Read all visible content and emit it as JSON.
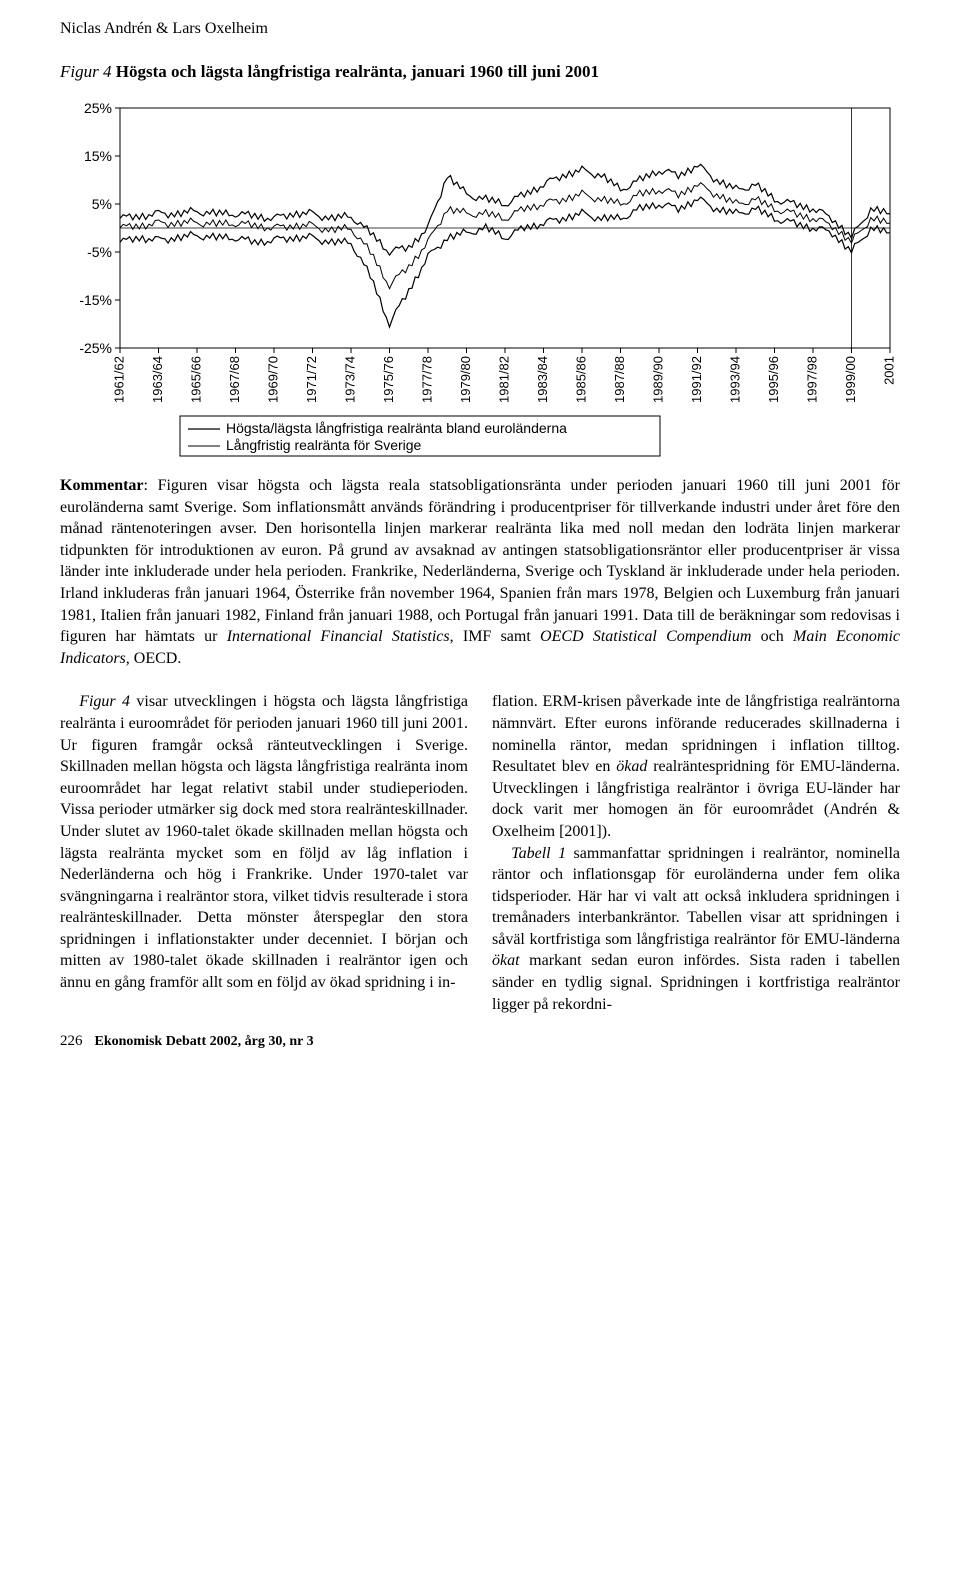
{
  "authors": "Niclas Andrén & Lars Oxelheim",
  "figure": {
    "label": "Figur 4",
    "title": "Högsta och lägsta långfristiga realränta, januari 1960 till juni 2001"
  },
  "chart": {
    "type": "line",
    "background_color": "#ffffff",
    "axis_color": "#000000",
    "grid_color": "#000000",
    "ylim": [
      -25,
      25
    ],
    "ytick_step": 10,
    "yticks": [
      "25%",
      "15%",
      "5%",
      "-5%",
      "-15%",
      "-25%"
    ],
    "ytick_values": [
      25,
      15,
      5,
      -5,
      -15,
      -25
    ],
    "xticks": [
      "1961/62",
      "1963/64",
      "1965/66",
      "1967/68",
      "1969/70",
      "1971/72",
      "1973/74",
      "1975/76",
      "1977/78",
      "1979/80",
      "1981/82",
      "1983/84",
      "1985/86",
      "1987/88",
      "1989/90",
      "1991/92",
      "1993/94",
      "1995/96",
      "1997/98",
      "1999/00",
      "2001"
    ],
    "series": [
      {
        "name": "hogsta_lagsta",
        "color": "#000000",
        "line_width": 1.2,
        "high": [
          2,
          2.5,
          3,
          3,
          3.5,
          3,
          3,
          2.5,
          2,
          3,
          3,
          2,
          2.5,
          -1,
          -5,
          -4,
          0,
          11,
          7,
          6,
          5,
          7,
          9,
          11,
          12,
          11,
          8,
          10,
          12,
          11,
          13,
          10,
          8,
          9,
          6,
          5,
          4,
          2,
          -2,
          4,
          3
        ],
        "low": [
          -3,
          -2,
          -2.5,
          -2,
          -1.5,
          -2,
          -2,
          -3,
          -2.5,
          -2,
          -2,
          -3,
          -3,
          -10,
          -20,
          -13,
          -6,
          -2,
          -1,
          0,
          -2,
          0,
          1,
          2,
          3,
          2,
          2,
          4,
          5,
          4,
          6,
          4,
          3,
          4,
          2,
          1,
          0,
          -1,
          -5,
          0,
          -1
        ]
      },
      {
        "name": "sverige",
        "color": "#000000",
        "line_width": 1.0,
        "values": [
          0,
          0.5,
          1,
          1,
          1.2,
          0.8,
          1,
          0.5,
          0,
          0.5,
          0.5,
          -0.5,
          0,
          -5,
          -12,
          -8,
          -3,
          4,
          3,
          3,
          2,
          4,
          5,
          6,
          7,
          6,
          5,
          7,
          8,
          7,
          9,
          7,
          5,
          6,
          4,
          3,
          2,
          0.5,
          -3,
          2,
          1
        ]
      }
    ],
    "legend": {
      "items": [
        "Högsta/lägsta långfristiga realränta bland euroländerna",
        "Långfristig realränta för Sverige"
      ],
      "border_color": "#000000",
      "background": "#ffffff"
    }
  },
  "kommentar": {
    "label": "Kommentar",
    "text_pre": ": Figuren visar högsta och lägsta reala statsobligationsränta under perioden januari 1960 till juni 2001 för euroländerna samt Sverige. Som inflationsmått används förändring i producentpriser för tillverkande industri under året före den månad räntenoteringen avser. Den horisontella linjen markerar realränta lika med noll medan den lodräta linjen markerar tidpunkten för introduktionen av euron. På grund av avsaknad av antingen statsobligationsräntor eller producentpriser är vissa länder inte inkluderade under hela perioden. Frankrike, Nederländerna, Sverige och Tyskland är inkluderade under hela perioden. Irland inkluderas från januari 1964, Österrike från november 1964, Spanien från mars 1978, Belgien och Luxemburg från januari 1981, Italien från januari 1982, Finland från januari 1988, och Portugal från januari 1991. Data till de beräkningar som redovisas i figuren har hämtats ur ",
    "italic1": "International Financial Statistics",
    "text_mid": ", IMF samt ",
    "italic2": "OECD Statistical Compendium",
    "text_mid2": " och ",
    "italic3": "Main Economic Indicators",
    "text_post": ", OECD."
  },
  "col_left": {
    "fig_ref": "Figur 4",
    "p1_rest": " visar utvecklingen i högsta och lägsta långfristiga realränta i euroområdet för perioden januari 1960 till juni 2001. Ur figuren framgår också ränteutvecklingen i Sverige. Skillnaden mellan högsta och lägsta långfristiga realränta inom euroområdet har legat relativt stabil under studieperioden. Vissa perioder utmärker sig dock med stora realränteskillnader. Under slutet av 1960-talet ökade skillnaden mellan högsta och lägsta realränta mycket som en följd av låg inflation i Nederländerna och hög i Frankrike. Under 1970-talet var svängningarna i realräntor stora, vilket tidvis resulterade i stora realränteskillnader. Detta mönster återspeglar den stora spridningen i inflationstakter under decenniet. I början och mitten av 1980-talet ökade skillnaden i realräntor igen och ännu en gång framför allt som en följd av ökad spridning i in-"
  },
  "col_right": {
    "p1": "flation. ERM-krisen påverkade inte de långfristiga realräntorna nämnvärt. Efter eurons införande reducerades skillnaderna i nominella räntor, medan spridningen i inflation tilltog. Resultatet blev en ",
    "italic1": "ökad",
    "p1_cont": " realräntespridning för EMU-länderna. Utvecklingen i långfristiga realräntor i övriga EU-länder har dock varit mer homogen än för euroområdet (Andrén & Oxelheim [2001]).",
    "p2_ref": "Tabell 1",
    "p2": " sammanfattar spridningen i realräntor, nominella räntor och inflationsgap för euroländerna under fem olika tidsperioder. Här har vi valt att också inkludera spridningen i tremånaders interbankräntor. Tabellen visar att spridningen i såväl kortfristiga som långfristiga realräntor för EMU-länderna ",
    "italic2": "ökat",
    "p2_cont": " markant sedan euron infördes. Sista raden i tabellen sänder en tydlig signal. Spridningen i kortfristiga realräntor ligger på rekordni-"
  },
  "footer": {
    "page": "226",
    "journal": "Ekonomisk Debatt 2002, årg 30, nr 3"
  }
}
